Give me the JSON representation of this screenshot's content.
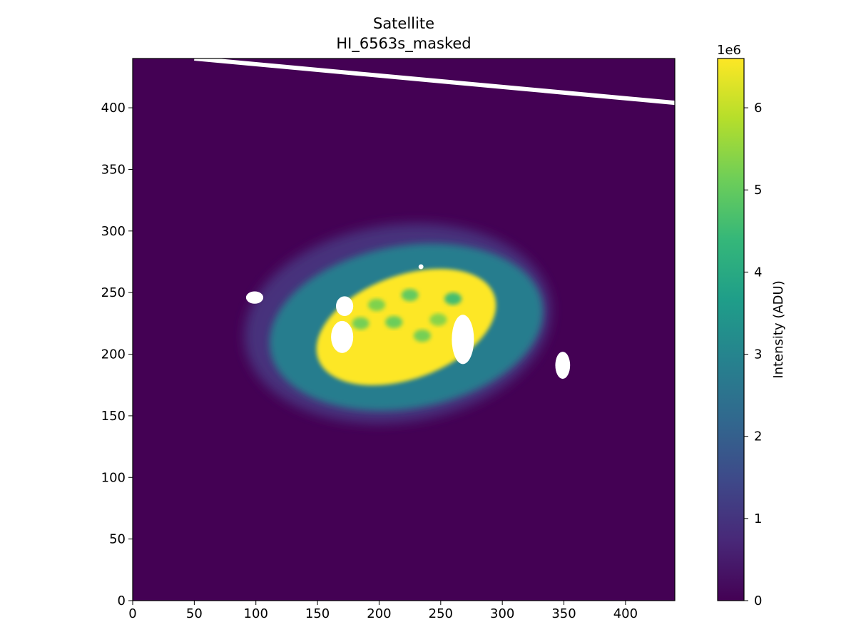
{
  "chart_data": {
    "type": "heatmap",
    "title": "Satellite",
    "subtitle": "HI_6563s_masked",
    "xlabel": "",
    "ylabel": "",
    "xlim": [
      0,
      440
    ],
    "ylim": [
      0,
      440
    ],
    "xticks": [
      0,
      50,
      100,
      150,
      200,
      250,
      300,
      350,
      400
    ],
    "yticks": [
      0,
      50,
      100,
      150,
      200,
      250,
      300,
      350,
      400
    ],
    "grid": false,
    "colormap": "viridis",
    "background_color": "#440154",
    "mask_color": "#ffffff",
    "colorbar": {
      "label": "Intensity (ADU)",
      "multiplier": "1e6",
      "range": [
        0,
        6.6
      ],
      "ticks": [
        0,
        1,
        2,
        3,
        4,
        5,
        6
      ]
    },
    "features": {
      "outer_halo": {
        "center": [
          215,
          225
        ],
        "radii": [
          125,
          80
        ],
        "rotation_deg": -8,
        "level": 0.9
      },
      "shell": {
        "center": [
          222,
          222
        ],
        "radii": [
          112,
          66
        ],
        "rotation_deg": -10,
        "level": 2.8
      },
      "bright_core": {
        "center": [
          222,
          222
        ],
        "radii": [
          76,
          42
        ],
        "rotation_deg": -20,
        "level": 6.6
      },
      "knots": [
        {
          "x": 198,
          "y": 240,
          "level": 5.3
        },
        {
          "x": 212,
          "y": 226,
          "level": 5.1
        },
        {
          "x": 235,
          "y": 215,
          "level": 5.2
        },
        {
          "x": 248,
          "y": 228,
          "level": 5.4
        },
        {
          "x": 225,
          "y": 248,
          "level": 5.0
        },
        {
          "x": 260,
          "y": 245,
          "level": 4.6
        },
        {
          "x": 185,
          "y": 225,
          "level": 5.2
        }
      ],
      "masks": [
        {
          "x": 99,
          "y": 246,
          "rx": 7,
          "ry": 5
        },
        {
          "x": 172,
          "y": 239,
          "rx": 7,
          "ry": 8
        },
        {
          "x": 170,
          "y": 214,
          "rx": 9,
          "ry": 13
        },
        {
          "x": 268,
          "y": 212,
          "rx": 9,
          "ry": 20
        },
        {
          "x": 349,
          "y": 191,
          "rx": 6,
          "ry": 11
        },
        {
          "x": 234,
          "y": 271,
          "rx": 2,
          "ry": 2
        }
      ],
      "streak": {
        "from": [
          50,
          440
        ],
        "to": [
          440,
          404
        ]
      }
    }
  }
}
